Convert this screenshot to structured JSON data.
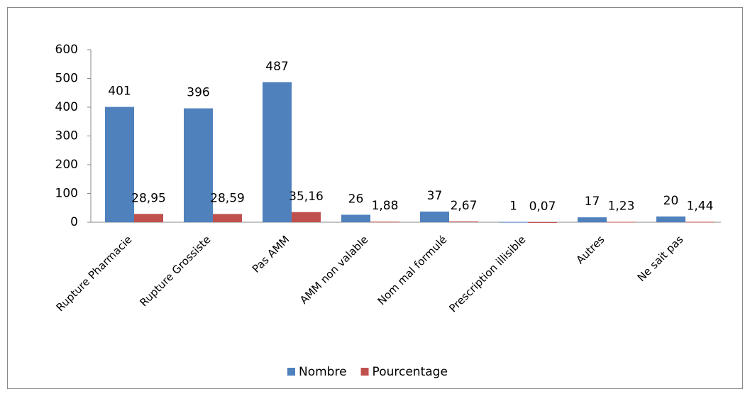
{
  "chart_data": {
    "type": "bar",
    "categories": [
      "Rupture Pharmacie",
      "Rupture Grossiste",
      "Pas AMM",
      "AMM non valable",
      "Nom mal formulé",
      "Prescription illisible",
      "Autres",
      "Ne sait pas"
    ],
    "series": [
      {
        "name": "Nombre",
        "color": "#4f81bd",
        "values": [
          401,
          396,
          487,
          26,
          37,
          1,
          17,
          20
        ]
      },
      {
        "name": "Pourcentage",
        "color": "#c0504d",
        "values": [
          28.95,
          28.59,
          35.16,
          1.88,
          2.67,
          0.07,
          1.23,
          1.44
        ],
        "value_labels": [
          "28,95",
          "28,59",
          "35,16",
          "1,88",
          "2,67",
          "0,07",
          "1,23",
          "1,44"
        ]
      }
    ],
    "ylim": [
      0,
      600
    ],
    "yticks": [
      0,
      100,
      200,
      300,
      400,
      500,
      600
    ],
    "legend": "bottom"
  }
}
